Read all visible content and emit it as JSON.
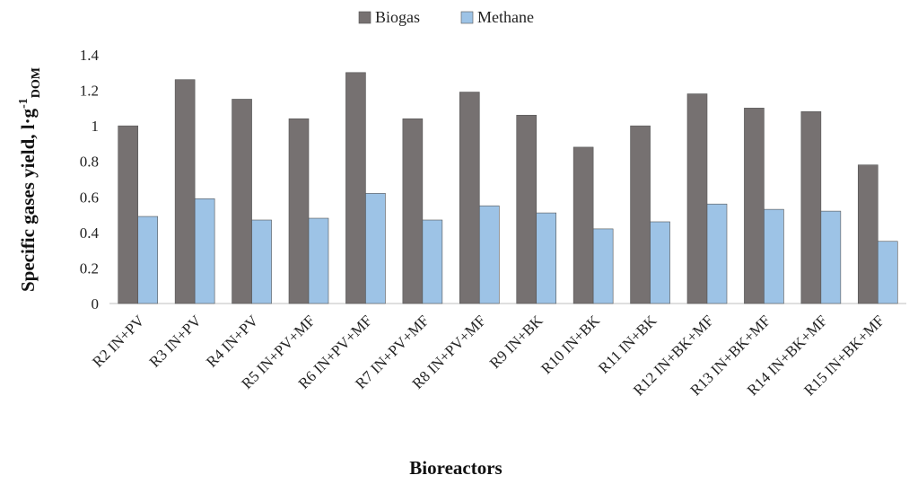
{
  "chart_data": {
    "type": "bar",
    "xlabel": "Bioreactors",
    "ylabel": {
      "main": "Specific gases yield, l·g",
      "sup": "-1",
      "sub": "DOM"
    },
    "categories": [
      "R2 IN+PV",
      "R3 IN+PV",
      "R4 IN+PV",
      "R5 IN+PV+MF",
      "R6 IN+PV+MF",
      "R7 IN+PV+MF",
      "R8 IN+PV+MF",
      "R9 IN+BK",
      "R10 IN+BK",
      "R11 IN+BK",
      "R12 IN+BK+MF",
      "R13 IN+BK+MF",
      "R14 IN+BK+MF",
      "R15 IN+BK+MF"
    ],
    "series": [
      {
        "name": "Biogas",
        "color": "#767171",
        "values": [
          1.0,
          1.26,
          1.15,
          1.04,
          1.3,
          1.04,
          1.19,
          1.06,
          0.88,
          1.0,
          1.18,
          1.1,
          1.08,
          0.78
        ]
      },
      {
        "name": "Methane",
        "color": "#9dc3e6",
        "values": [
          0.49,
          0.59,
          0.47,
          0.48,
          0.62,
          0.47,
          0.55,
          0.51,
          0.42,
          0.46,
          0.56,
          0.53,
          0.52,
          0.35
        ]
      }
    ],
    "ylim": [
      0,
      1.4
    ],
    "yticks": [
      0,
      0.2,
      0.4,
      0.6,
      0.8,
      1,
      1.2,
      1.4
    ],
    "ytick_labels": [
      "0",
      "0.2",
      "0.4",
      "0.6",
      "0.8",
      "1",
      "1.2",
      "1.4"
    ],
    "legend_position": "top-center",
    "grid": false
  }
}
